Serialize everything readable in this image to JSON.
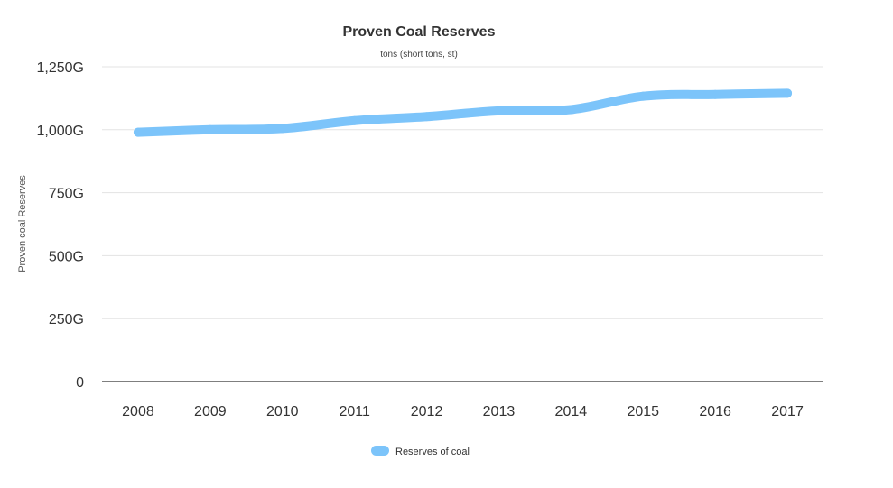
{
  "chart_data": {
    "type": "line",
    "title": "Proven Coal Reserves",
    "subtitle": "tons (short tons, st)",
    "xlabel": "",
    "ylabel": "Proven coal Reserves",
    "categories": [
      "2008",
      "2009",
      "2010",
      "2011",
      "2012",
      "2013",
      "2014",
      "2015",
      "2016",
      "2017"
    ],
    "series": [
      {
        "name": "Reserves of coal",
        "color": "#7cc4fa",
        "values": [
          990,
          1000,
          1005,
          1036,
          1052,
          1075,
          1080,
          1133,
          1140,
          1145
        ]
      }
    ],
    "y_ticks": [
      0,
      250,
      500,
      750,
      1000,
      1250
    ],
    "y_tick_labels": [
      "0",
      "250G",
      "500G",
      "750G",
      "1,000G",
      "1,250G"
    ],
    "ylim": [
      0,
      1250
    ],
    "grid": true,
    "legend_position": "bottom-center"
  }
}
